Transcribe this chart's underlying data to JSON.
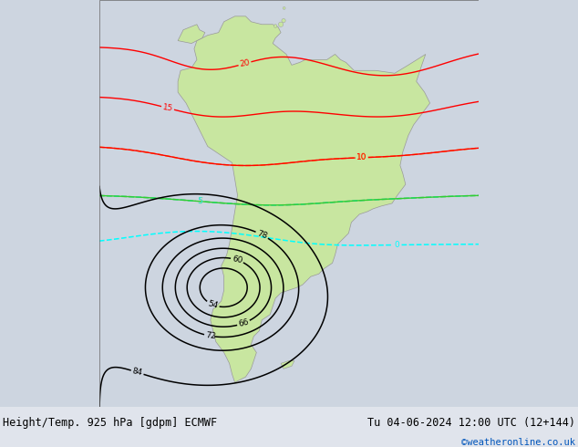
{
  "title_left": "Height/Temp. 925 hPa [gdpm] ECMWF",
  "title_right": "Tu 04-06-2024 12:00 UTC (12+144)",
  "credit": "©weatheronline.co.uk",
  "bg_color": "#cdd5e0",
  "land_color": "#c8e6a0",
  "border_color": "#999999",
  "fig_width": 6.34,
  "fig_height": 4.9,
  "dpi": 100,
  "title_fontsize": 8.5,
  "credit_fontsize": 7.5,
  "credit_color": "#0055bb",
  "lon_min": -95,
  "lon_max": -25,
  "lat_min": -60,
  "lat_max": 15
}
